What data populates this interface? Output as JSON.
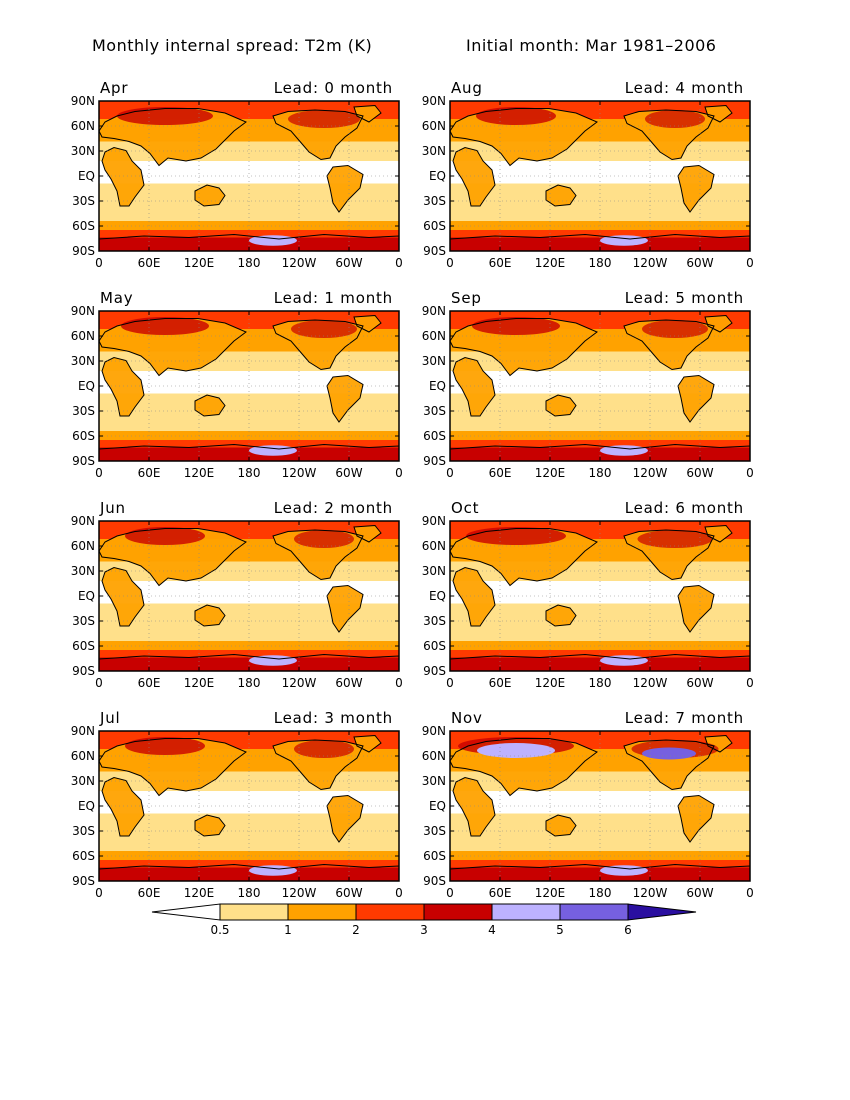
{
  "figure": {
    "title_left": "Monthly internal spread: T2m (K)",
    "title_right": "Initial month: Mar 1981–2006"
  },
  "axes": {
    "lat_ticks": [
      "90N",
      "60N",
      "30N",
      "EQ",
      "30S",
      "60S",
      "90S"
    ],
    "lon_ticks": [
      "0",
      "60E",
      "120E",
      "180",
      "120W",
      "60W",
      "0"
    ],
    "lon_ticks_last_panel": [
      "0",
      "60E",
      "120E",
      "180",
      "120W",
      "60W",
      "0"
    ]
  },
  "panels": [
    {
      "month": "Apr",
      "lead": "Lead: 0 month",
      "intensity": 1.2
    },
    {
      "month": "Aug",
      "lead": "Lead: 4 month",
      "intensity": 1.0
    },
    {
      "month": "May",
      "lead": "Lead: 1 month",
      "intensity": 1.1
    },
    {
      "month": "Sep",
      "lead": "Lead: 5 month",
      "intensity": 1.1
    },
    {
      "month": "Jun",
      "lead": "Lead: 2 month",
      "intensity": 1.0
    },
    {
      "month": "Oct",
      "lead": "Lead: 6 month",
      "intensity": 1.25
    },
    {
      "month": "Jul",
      "lead": "Lead: 3 month",
      "intensity": 1.0
    },
    {
      "month": "Nov",
      "lead": "Lead: 7 month",
      "intensity": 1.45
    }
  ],
  "colorbar": {
    "labels": [
      "0.5",
      "1",
      "2",
      "3",
      "4",
      "5",
      "6"
    ],
    "colors": [
      "#ffffff",
      "#ffe08a",
      "#ffa200",
      "#ff3a00",
      "#c80000",
      "#bdb2ff",
      "#7660e0",
      "#2a0fa0"
    ]
  }
}
